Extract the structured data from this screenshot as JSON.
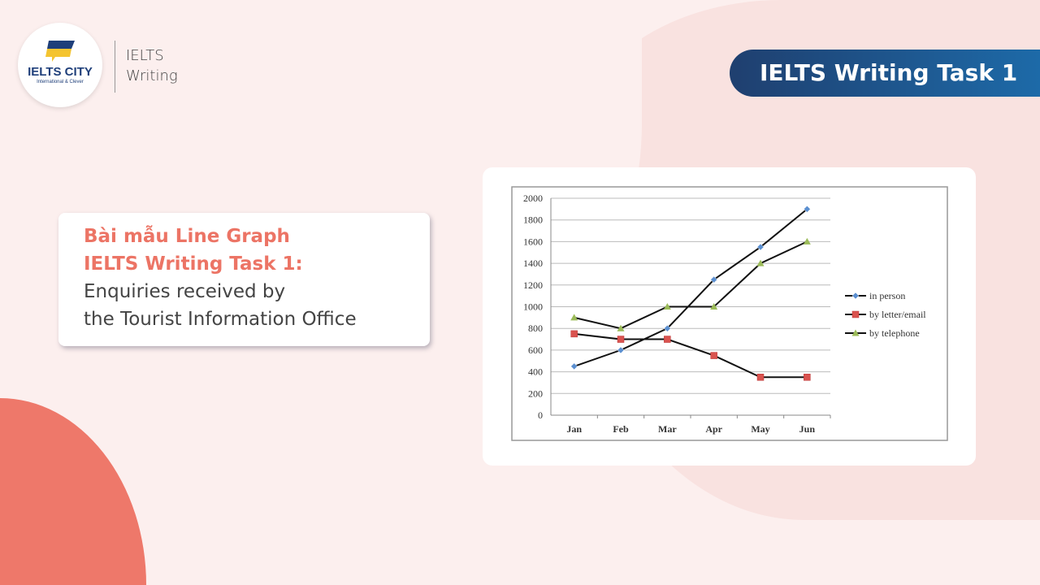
{
  "logo": {
    "name": "IELTS CITY",
    "tagline": "International & Clever"
  },
  "brand": {
    "line1": "IELTS",
    "line2": "Writing"
  },
  "badge": "IELTS Writing Task 1",
  "card": {
    "heading1": "Bài mẫu Line Graph",
    "heading2": "IELTS Writing Task 1:",
    "text1": "Enquiries received by",
    "text2": "the Tourist Information Office"
  },
  "colors": {
    "accent": "#ec7465",
    "navy": "#1f3f6f"
  },
  "chart_data": {
    "type": "line",
    "categories": [
      "Jan",
      "Feb",
      "Mar",
      "Apr",
      "May",
      "Jun"
    ],
    "ylim": [
      0,
      2000
    ],
    "yticks": [
      0,
      200,
      400,
      600,
      800,
      1000,
      1200,
      1400,
      1600,
      1800,
      2000
    ],
    "grid": true,
    "legend": "right",
    "series": [
      {
        "name": "in person",
        "values": [
          450,
          600,
          800,
          1250,
          1550,
          1900
        ],
        "marker": "diamond",
        "color": "#5b8fd0"
      },
      {
        "name": "by letter/email",
        "values": [
          750,
          700,
          700,
          550,
          350,
          350
        ],
        "marker": "square",
        "color": "#d9534f"
      },
      {
        "name": "by telephone",
        "values": [
          900,
          800,
          1000,
          1000,
          1400,
          1600
        ],
        "marker": "triangle",
        "color": "#9bbb59"
      }
    ]
  }
}
